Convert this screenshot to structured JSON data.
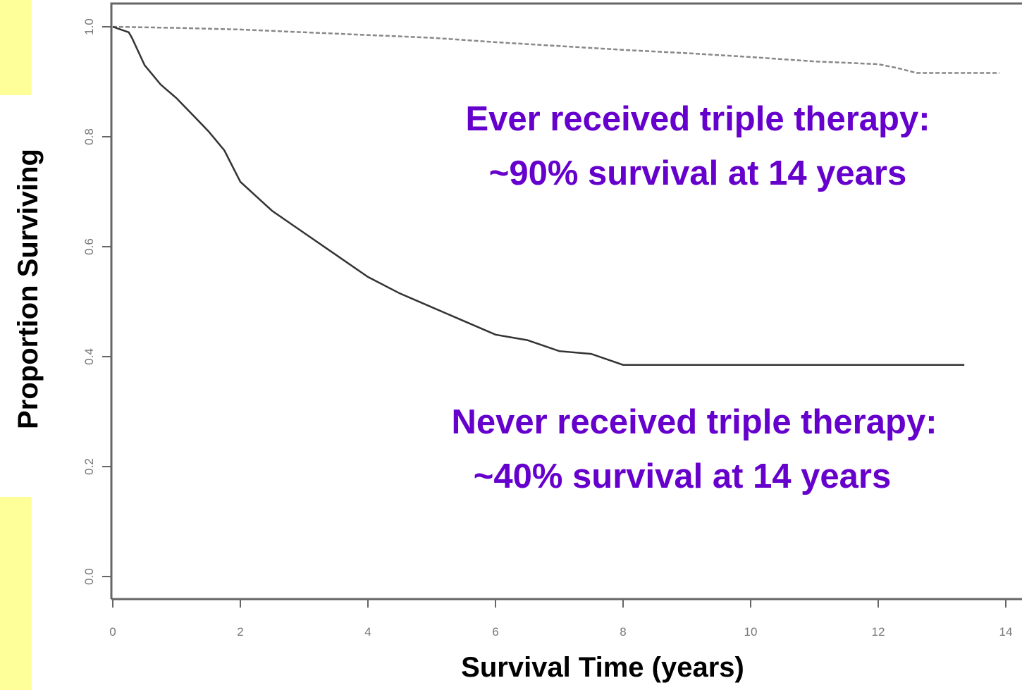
{
  "chart_data": {
    "type": "line",
    "xlabel": "Survival Time (years)",
    "ylabel": "Proportion Surviving",
    "xlim": [
      0,
      14
    ],
    "ylim": [
      0,
      1
    ],
    "xticks": [
      0,
      2,
      4,
      6,
      8,
      10,
      12,
      14
    ],
    "yticks": [
      {
        "value": 0,
        "label": "0.0"
      },
      0.2,
      0.4,
      0.6,
      0.8,
      {
        "value": 1,
        "label": "1.0"
      }
    ],
    "annotations": [
      "Ever received triple therapy:",
      "~90% survival at 14 years",
      "Never received triple therapy:",
      "~40% survival at 14 years"
    ],
    "annotation_color": "#6600cc",
    "series": [
      {
        "color": "#888888",
        "dashed": true,
        "x": [
          0,
          1,
          2,
          3,
          4,
          5,
          6,
          7,
          8,
          9,
          10,
          11,
          12,
          12.3,
          12.6,
          13.9
        ],
        "values": [
          1.0,
          0.998,
          0.995,
          0.99,
          0.985,
          0.98,
          0.972,
          0.965,
          0.958,
          0.952,
          0.945,
          0.937,
          0.932,
          0.925,
          0.916,
          0.916
        ]
      },
      {
        "color": "#333333",
        "dashed": false,
        "x": [
          0,
          0.25,
          0.3,
          0.5,
          0.75,
          1,
          1.25,
          1.5,
          1.75,
          2,
          2.5,
          3,
          3.5,
          4,
          4.5,
          5,
          5.5,
          6,
          6.5,
          7,
          7.5,
          8,
          13.35
        ],
        "values": [
          1.0,
          0.99,
          0.98,
          0.93,
          0.895,
          0.87,
          0.84,
          0.81,
          0.775,
          0.718,
          0.665,
          0.625,
          0.585,
          0.545,
          0.515,
          0.49,
          0.465,
          0.44,
          0.43,
          0.41,
          0.405,
          0.385,
          0.385
        ]
      }
    ]
  }
}
